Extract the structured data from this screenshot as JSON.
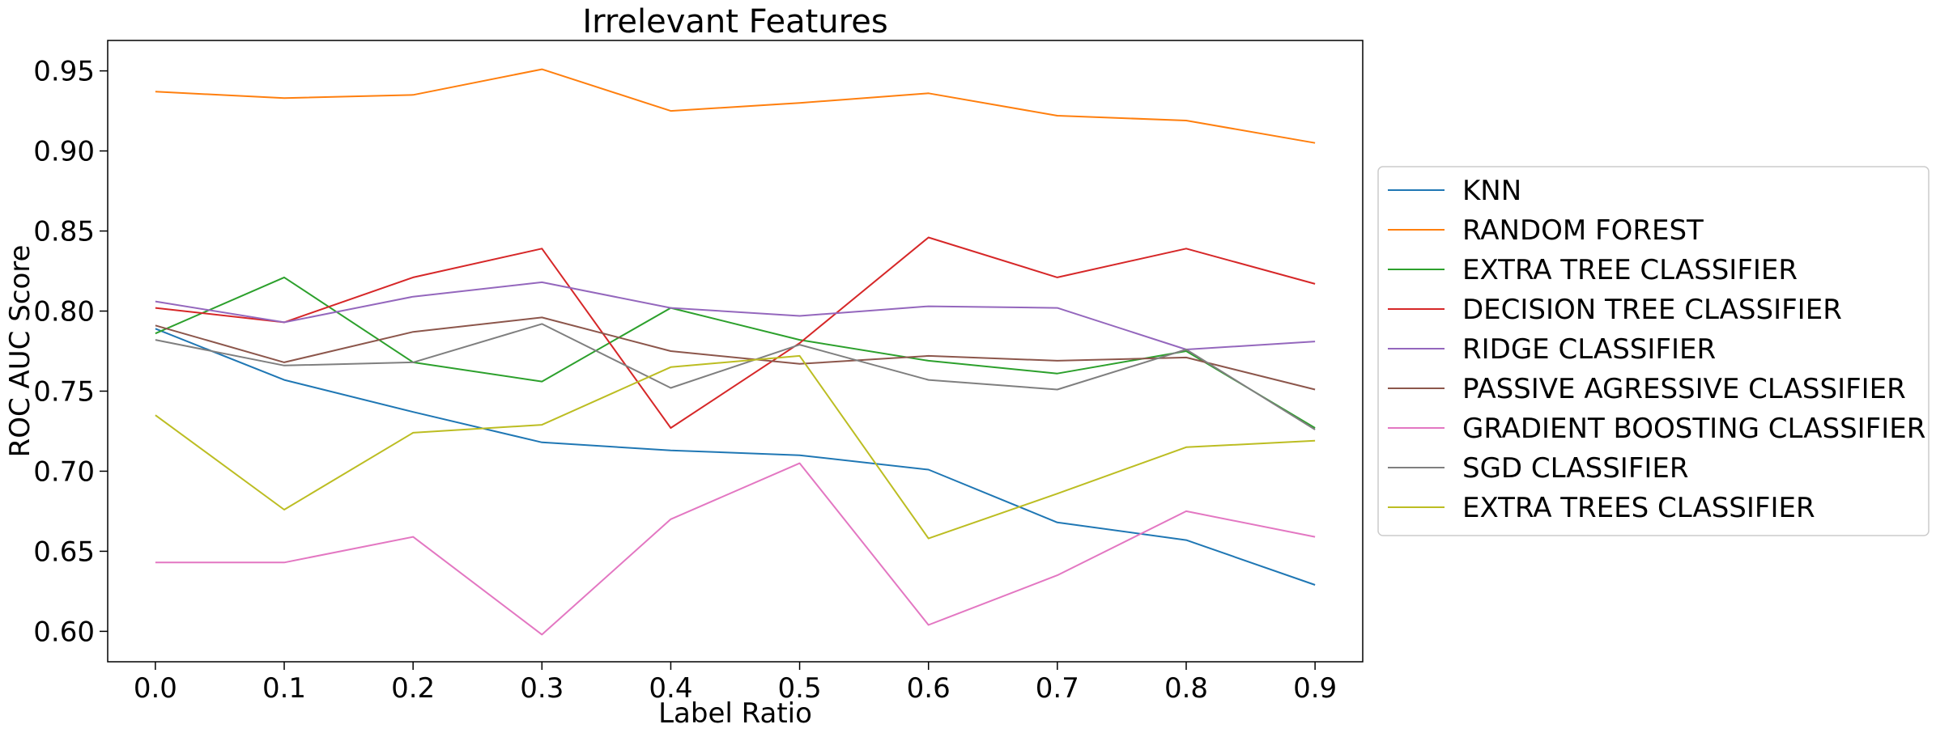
{
  "chart_data": {
    "type": "line",
    "title": "Irrelevant Features",
    "xlabel": "Label Ratio",
    "ylabel": "ROC AUC Score",
    "x": [
      0.0,
      0.1,
      0.2,
      0.3,
      0.4,
      0.5,
      0.6,
      0.7,
      0.8,
      0.9
    ],
    "x_tick_labels": [
      "0.0",
      "0.1",
      "0.2",
      "0.3",
      "0.4",
      "0.5",
      "0.6",
      "0.7",
      "0.8",
      "0.9"
    ],
    "y_ticks": [
      0.6,
      0.65,
      0.7,
      0.75,
      0.8,
      0.85,
      0.9,
      0.95
    ],
    "y_tick_labels": [
      "0.60",
      "0.65",
      "0.70",
      "0.75",
      "0.80",
      "0.85",
      "0.90",
      "0.95"
    ],
    "xlim": [
      -0.037,
      0.937
    ],
    "ylim": [
      0.581,
      0.969
    ],
    "grid": false,
    "legend_position": "outside-right",
    "series": [
      {
        "name": "KNN",
        "color": "#1f77b4",
        "values": [
          0.789,
          0.757,
          0.737,
          0.718,
          0.713,
          0.71,
          0.701,
          0.668,
          0.657,
          0.629
        ]
      },
      {
        "name": "RANDOM FOREST",
        "color": "#ff7f0e",
        "values": [
          0.937,
          0.933,
          0.935,
          0.951,
          0.925,
          0.93,
          0.936,
          0.922,
          0.919,
          0.905
        ]
      },
      {
        "name": "EXTRA TREE CLASSIFIER",
        "color": "#2ca02c",
        "values": [
          0.786,
          0.821,
          0.768,
          0.756,
          0.802,
          0.782,
          0.769,
          0.761,
          0.775,
          0.727
        ]
      },
      {
        "name": "DECISION TREE CLASSIFIER",
        "color": "#d62728",
        "values": [
          0.802,
          0.793,
          0.821,
          0.839,
          0.727,
          0.78,
          0.846,
          0.821,
          0.839,
          0.817
        ]
      },
      {
        "name": "RIDGE CLASSIFIER",
        "color": "#9467bd",
        "values": [
          0.806,
          0.793,
          0.809,
          0.818,
          0.802,
          0.797,
          0.803,
          0.802,
          0.776,
          0.781
        ]
      },
      {
        "name": "PASSIVE AGRESSIVE CLASSIFIER",
        "color": "#8c564b",
        "values": [
          0.791,
          0.768,
          0.787,
          0.796,
          0.775,
          0.767,
          0.772,
          0.769,
          0.771,
          0.751
        ]
      },
      {
        "name": "GRADIENT BOOSTING CLASSIFIER",
        "color": "#e377c2",
        "values": [
          0.643,
          0.643,
          0.659,
          0.598,
          0.67,
          0.705,
          0.604,
          0.635,
          0.675,
          0.659
        ]
      },
      {
        "name": "SGD CLASSIFIER",
        "color": "#7f7f7f",
        "values": [
          0.782,
          0.766,
          0.768,
          0.792,
          0.752,
          0.779,
          0.757,
          0.751,
          0.776,
          0.726
        ]
      },
      {
        "name": "EXTRA TREES CLASSIFIER",
        "color": "#bcbd22",
        "values": [
          0.735,
          0.676,
          0.724,
          0.729,
          0.765,
          0.772,
          0.658,
          0.686,
          0.715,
          0.719
        ]
      }
    ]
  }
}
